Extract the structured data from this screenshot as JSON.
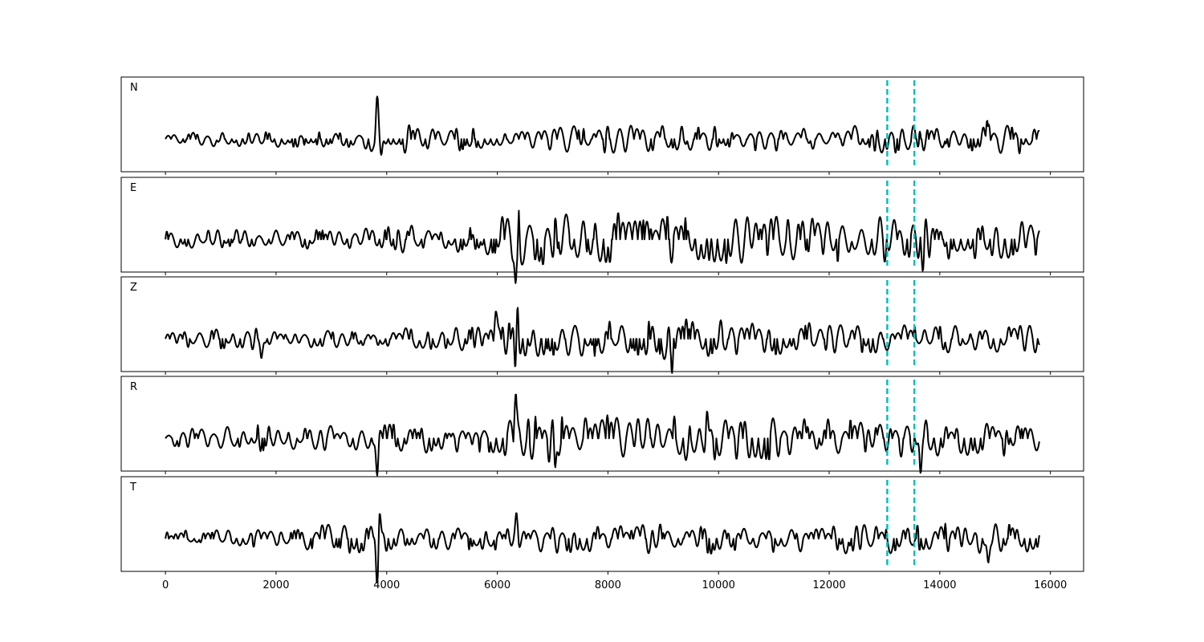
{
  "chart_data": {
    "type": "line",
    "xlim": [
      -800,
      16600
    ],
    "x_ticks": [
      0,
      2000,
      4000,
      6000,
      8000,
      10000,
      12000,
      14000,
      16000
    ],
    "x_tick_labels": [
      "0",
      "2000",
      "4000",
      "6000",
      "8000",
      "10000",
      "12000",
      "14000",
      "16000"
    ],
    "x_range": [
      0,
      15800
    ],
    "pick_lines": {
      "color": "#00bfbf",
      "style": "dashed",
      "x": [
        13050,
        13540
      ]
    },
    "trace_color": "#000000",
    "grid": false,
    "panels": [
      {
        "label": "N",
        "y_label_shown": false,
        "noise": [
          [
            0,
            0.16
          ],
          [
            3400,
            0.18
          ],
          [
            3700,
            0.35
          ],
          [
            6000,
            0.22
          ],
          [
            7000,
            0.28
          ],
          [
            8500,
            0.36
          ],
          [
            9500,
            0.3
          ],
          [
            11000,
            0.27
          ],
          [
            13000,
            0.3
          ],
          [
            15800,
            0.32
          ]
        ],
        "spikes": [
          {
            "x": 3830,
            "a": 1.0
          },
          {
            "x": 3900,
            "a": -0.45
          },
          {
            "x": 14860,
            "a": 0.36
          }
        ]
      },
      {
        "label": "E",
        "y_label_shown": false,
        "noise": [
          [
            0,
            0.2
          ],
          [
            3000,
            0.22
          ],
          [
            3800,
            0.35
          ],
          [
            5500,
            0.28
          ],
          [
            6300,
            0.6
          ],
          [
            7200,
            0.55
          ],
          [
            8500,
            0.6
          ],
          [
            10000,
            0.55
          ],
          [
            12000,
            0.5
          ],
          [
            13500,
            0.5
          ],
          [
            15800,
            0.38
          ]
        ],
        "spikes": [
          {
            "x": 6340,
            "a": -0.95
          },
          {
            "x": 6380,
            "a": 0.7
          },
          {
            "x": 7060,
            "a": 0.82
          },
          {
            "x": 9830,
            "a": -0.7
          },
          {
            "x": 13700,
            "a": -0.55
          }
        ]
      },
      {
        "label": "Z",
        "y_label_shown": false,
        "noise": [
          [
            0,
            0.16
          ],
          [
            1700,
            0.3
          ],
          [
            1900,
            0.18
          ],
          [
            3700,
            0.2
          ],
          [
            6000,
            0.35
          ],
          [
            6400,
            0.45
          ],
          [
            7500,
            0.38
          ],
          [
            9000,
            0.45
          ],
          [
            11000,
            0.38
          ],
          [
            13000,
            0.3
          ],
          [
            15800,
            0.3
          ]
        ],
        "spikes": [
          {
            "x": 6330,
            "a": -1.0
          },
          {
            "x": 6360,
            "a": 0.85
          },
          {
            "x": 5980,
            "a": 0.55
          },
          {
            "x": 1740,
            "a": -0.4
          },
          {
            "x": 9150,
            "a": -0.5
          }
        ]
      },
      {
        "label": "R",
        "y_label_shown": false,
        "noise": [
          [
            0,
            0.18
          ],
          [
            1700,
            0.32
          ],
          [
            2000,
            0.22
          ],
          [
            3800,
            0.35
          ],
          [
            5500,
            0.28
          ],
          [
            6300,
            0.45
          ],
          [
            7000,
            0.55
          ],
          [
            8500,
            0.55
          ],
          [
            10000,
            0.5
          ],
          [
            12000,
            0.45
          ],
          [
            13500,
            0.42
          ],
          [
            15800,
            0.36
          ]
        ],
        "spikes": [
          {
            "x": 6340,
            "a": 0.9
          },
          {
            "x": 7040,
            "a": -0.8
          },
          {
            "x": 9790,
            "a": 0.72
          },
          {
            "x": 3830,
            "a": -0.72
          },
          {
            "x": 13650,
            "a": -0.65
          }
        ]
      },
      {
        "label": "T",
        "y_label_shown": false,
        "noise": [
          [
            0,
            0.18
          ],
          [
            2000,
            0.2
          ],
          [
            3600,
            0.4
          ],
          [
            4200,
            0.22
          ],
          [
            6000,
            0.25
          ],
          [
            7000,
            0.32
          ],
          [
            9000,
            0.35
          ],
          [
            11000,
            0.32
          ],
          [
            13500,
            0.35
          ],
          [
            15800,
            0.32
          ]
        ],
        "spikes": [
          {
            "x": 3830,
            "a": -1.0
          },
          {
            "x": 3870,
            "a": 0.58
          },
          {
            "x": 6350,
            "a": 0.52
          },
          {
            "x": 14880,
            "a": -0.52
          }
        ]
      }
    ]
  }
}
